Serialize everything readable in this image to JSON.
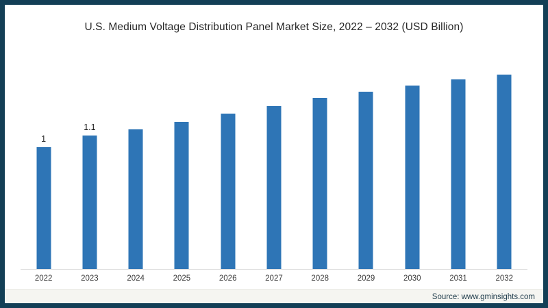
{
  "header": {
    "title": "U.S. Medium Voltage Distribution Panel Market Size, 2022 – 2032 (USD Billion)"
  },
  "chart_data": {
    "type": "bar",
    "title": "U.S. Medium Voltage Distribution Panel Market Size, 2022 – 2032 (USD Billion)",
    "categories": [
      "2022",
      "2023",
      "2024",
      "2025",
      "2026",
      "2027",
      "2028",
      "2029",
      "2030",
      "2031",
      "2032"
    ],
    "values": [
      1,
      1.1,
      1.15,
      1.21,
      1.28,
      1.34,
      1.41,
      1.46,
      1.51,
      1.56,
      1.6
    ],
    "data_labels": [
      "1",
      "1.1",
      "",
      "",
      "",
      "",
      "",
      "",
      "",
      "",
      ""
    ],
    "xlabel": "",
    "ylabel": "",
    "ylim": [
      0,
      1.75
    ],
    "grid": false,
    "legend_position": "none",
    "bar_color": "#2e75b6",
    "axis_line_color": "#dcdcdc"
  },
  "footer": {
    "source": "Source: www.gminsights.com"
  },
  "colors": {
    "frame_border": "#133f56",
    "bar": "#2e75b6",
    "title_text": "#262626"
  }
}
